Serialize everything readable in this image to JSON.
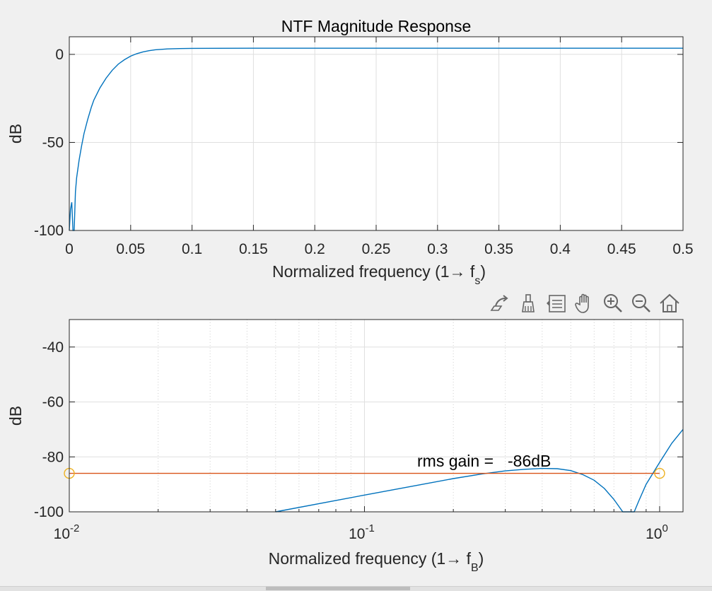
{
  "colors": {
    "background": "#f0f0f0",
    "axes_face": "#ffffff",
    "axes_edge": "#262626",
    "grid": "#dfdfdf",
    "series_ntf": "#0072bd",
    "series_rms": "#d95319",
    "marker": "#edb120"
  },
  "toolbar": {
    "icons": [
      "export-icon",
      "brush-icon",
      "legend-icon",
      "pan-icon",
      "zoom-in-icon",
      "zoom-out-icon",
      "home-icon"
    ]
  },
  "chart_data": [
    {
      "type": "line",
      "title": "NTF Magnitude Response",
      "xlabel_main": "Normalized frequency (1→ f",
      "xlabel_sub": "s",
      "xlabel_close": ")",
      "ylabel": "dB",
      "xlim": [
        0,
        0.5
      ],
      "ylim": [
        -100,
        10
      ],
      "xscale": "linear",
      "grid": true,
      "xticks": [
        0,
        0.05,
        0.1,
        0.15,
        0.2,
        0.25,
        0.3,
        0.35,
        0.4,
        0.45,
        0.5
      ],
      "xtick_labels": [
        "0",
        "0.05",
        "0.1",
        "0.15",
        "0.2",
        "0.25",
        "0.3",
        "0.35",
        "0.4",
        "0.45",
        "0.5"
      ],
      "yticks": [
        -100,
        -50,
        0
      ],
      "ytick_labels": [
        "-100",
        "-50",
        "0"
      ],
      "series": [
        {
          "x": [
            0,
            0.001,
            0.002,
            0.003,
            0.004,
            0.005,
            0.006,
            0.008,
            0.01,
            0.012,
            0.015,
            0.018,
            0.02,
            0.025,
            0.03,
            0.035,
            0.04,
            0.045,
            0.05,
            0.055,
            0.06,
            0.065,
            0.07,
            0.08,
            0.09,
            0.1,
            0.12,
            0.15,
            0.2,
            0.25,
            0.3,
            0.35,
            0.4,
            0.45,
            0.5
          ],
          "y": [
            -100,
            -88,
            -84,
            -100,
            -100,
            -78,
            -70,
            -60,
            -52,
            -45,
            -37,
            -30,
            -26,
            -19,
            -13.5,
            -9,
            -5.5,
            -3,
            -1,
            0.4,
            1.4,
            2.1,
            2.6,
            3.1,
            3.3,
            3.4,
            3.45,
            3.5,
            3.5,
            3.5,
            3.5,
            3.5,
            3.5,
            3.5,
            3.5
          ]
        }
      ]
    },
    {
      "type": "line",
      "title": "",
      "xlabel_main": "Normalized frequency (1→ f",
      "xlabel_sub": "B",
      "xlabel_close": ")",
      "ylabel": "dB",
      "xscale": "log",
      "xlim": [
        0.01,
        1.2
      ],
      "ylim": [
        -100,
        -30
      ],
      "grid": true,
      "xtick_exps": [
        "-2",
        "-1",
        "0"
      ],
      "xtick_base": "10",
      "yticks": [
        -100,
        -80,
        -60,
        -40
      ],
      "ytick_labels": [
        "-100",
        "-80",
        "-60",
        "-40"
      ],
      "series": [
        {
          "x": [
            0.05,
            0.1,
            0.15,
            0.2,
            0.25,
            0.3,
            0.35,
            0.4,
            0.45,
            0.5,
            0.55,
            0.6,
            0.65,
            0.7,
            0.75,
            0.77,
            0.79,
            0.82,
            0.85,
            0.9,
            1.0,
            1.1,
            1.2
          ],
          "y": [
            -100,
            -93.9,
            -90.4,
            -87.9,
            -86.2,
            -85.1,
            -84.5,
            -84.2,
            -84.3,
            -85.0,
            -86.5,
            -88.5,
            -91.5,
            -95.5,
            -100,
            -100,
            -100,
            -100,
            -96,
            -90,
            -82,
            -75,
            -70
          ]
        },
        {
          "x": [
            0.01,
            1.0
          ],
          "y": [
            -86,
            -86
          ],
          "markers": true
        }
      ],
      "annotation": {
        "label": "rms gain =",
        "value": "-86dB",
        "x": 0.3,
        "y": -82
      }
    }
  ]
}
